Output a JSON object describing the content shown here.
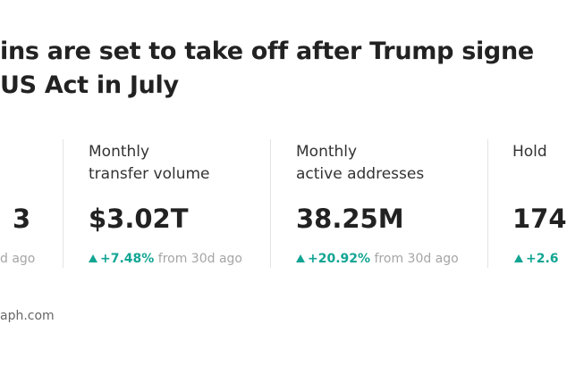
{
  "header": {
    "title_lines": [
      "ins are set to take off after Trump signe",
      "US Act in July"
    ]
  },
  "stats": [
    {
      "value": "3",
      "comparison": "d ago"
    },
    {
      "label_lines": [
        "Monthly",
        "transfer volume"
      ],
      "value": "$3.02T",
      "change": "+7.48%",
      "comparison": "from 30d ago"
    },
    {
      "label_lines": [
        "Monthly",
        "active addresses"
      ],
      "value": "38.25M",
      "change": "+20.92%",
      "comparison": "from 30d ago"
    },
    {
      "label_lines": [
        "Hold"
      ],
      "value": "174",
      "change": "+2.6"
    }
  ],
  "footer": "aph.com"
}
